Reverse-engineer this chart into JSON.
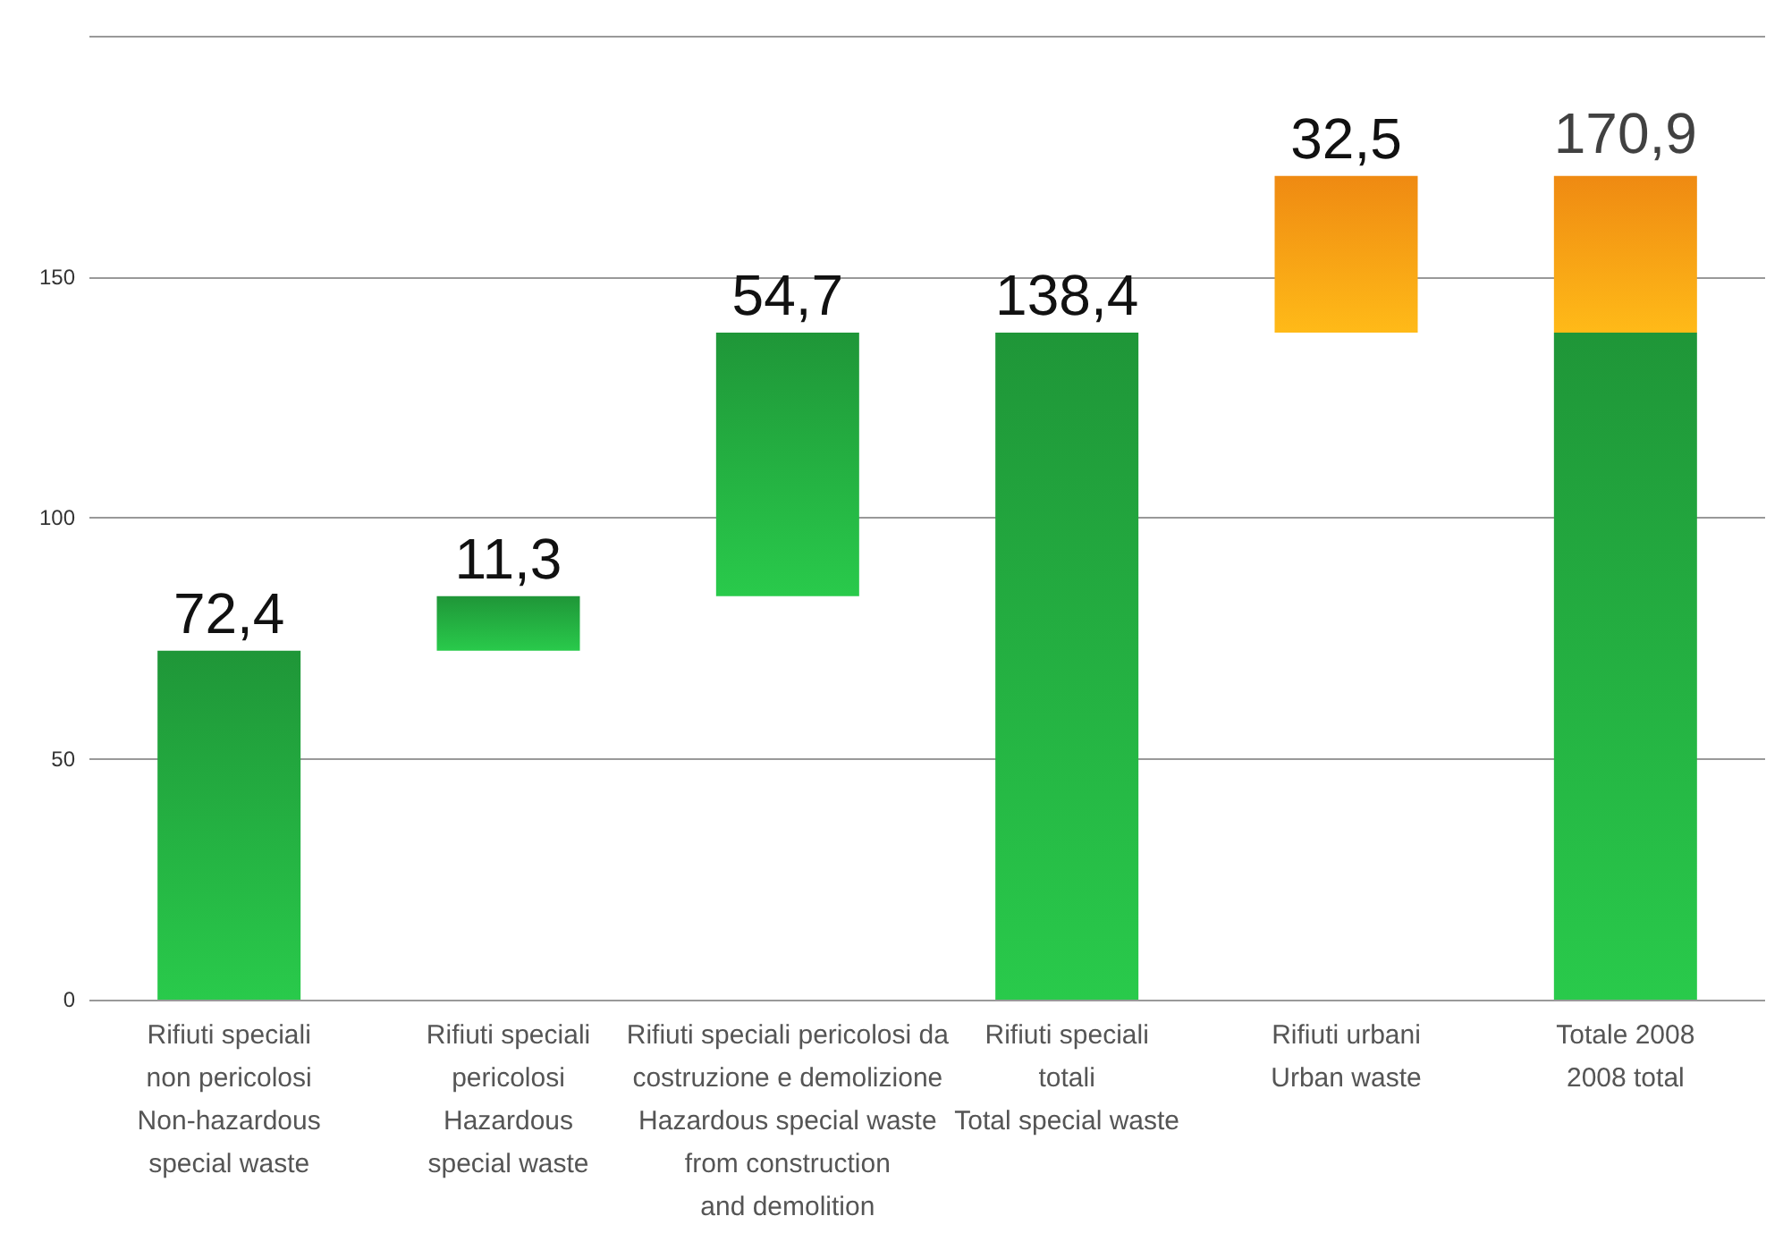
{
  "chart_data": {
    "type": "bar",
    "stacked": true,
    "categories": [
      "Rifiuti speciali\nnon pericolosi\nNon-hazardous\nspecial waste",
      "Rifiuti speciali\npericolosi\nHazardous\nspecial waste",
      "Rifiuti speciali pericolosi da\ncostruzione e demolizione\nHazardous special waste\nfrom construction\nand demolition",
      "Rifiuti speciali\ntotali\nTotal special waste",
      "Rifiuti urbani\nUrban waste",
      "Totale 2008\n2008 total"
    ],
    "series": [
      {
        "color": "#1f9638",
        "values": [
          72.4,
          11.3,
          54.7,
          138.4,
          null,
          138.4
        ],
        "base": [
          0,
          72.4,
          83.7,
          0,
          null,
          0
        ],
        "value_labels": [
          "72,4",
          "11,3",
          "54,7",
          "138,4",
          null,
          null
        ]
      },
      {
        "color": "#ef8a12",
        "values": [
          null,
          null,
          null,
          null,
          32.5,
          32.5
        ],
        "base": [
          null,
          null,
          null,
          null,
          138.4,
          138.4
        ],
        "value_labels": [
          null,
          null,
          null,
          null,
          "32,5",
          null
        ]
      }
    ],
    "totals": [
      null,
      null,
      null,
      null,
      null,
      "170,9"
    ],
    "ylim": [
      0,
      200
    ],
    "yticks": [
      0,
      50,
      100,
      150
    ],
    "grid": "y"
  }
}
